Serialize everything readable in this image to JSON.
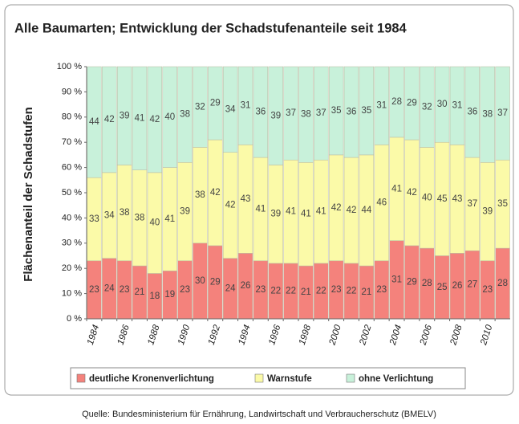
{
  "chart_data": {
    "type": "stacked_bar",
    "title": "Alle Baumarten; Entwicklung der Schadstufenanteile seit 1984",
    "y_label": "Flächenanteil der Schadstufen",
    "source": "Quelle: Bundesministerium für Ernährung, Landwirtschaft und Verbraucherschutz (BMELV)",
    "categories": [
      "1984",
      null,
      "1986",
      null,
      "1988",
      null,
      "1990",
      null,
      "1992",
      null,
      "1994",
      null,
      "1996",
      null,
      "1998",
      null,
      "2000",
      null,
      "2002",
      null,
      "2004",
      null,
      "2006",
      null,
      "2008",
      null,
      "2010",
      null
    ],
    "series": [
      {
        "name": "deutliche Kronenverlichtung",
        "color": "#f4827c",
        "values": [
          23,
          24,
          23,
          21,
          18,
          19,
          23,
          30,
          29,
          24,
          26,
          23,
          22,
          22,
          21,
          22,
          23,
          22,
          21,
          23,
          31,
          29,
          28,
          25,
          26,
          27,
          23,
          28
        ]
      },
      {
        "name": "Warnstufe",
        "color": "#fbfaa8",
        "values": [
          33,
          34,
          38,
          38,
          40,
          41,
          39,
          38,
          42,
          42,
          43,
          41,
          39,
          41,
          41,
          41,
          42,
          42,
          44,
          46,
          41,
          42,
          40,
          45,
          43,
          37,
          39,
          35
        ]
      },
      {
        "name": "ohne Verlichtung",
        "color": "#c8f1da",
        "values": [
          44,
          42,
          39,
          41,
          42,
          40,
          38,
          32,
          29,
          34,
          31,
          36,
          39,
          37,
          38,
          37,
          35,
          36,
          35,
          31,
          28,
          29,
          32,
          30,
          31,
          36,
          38,
          37
        ]
      }
    ],
    "ylim": [
      0,
      100
    ],
    "yticks": [
      {
        "value": 0,
        "label": "0 %"
      },
      {
        "value": 10,
        "label": "10 %"
      },
      {
        "value": 20,
        "label": "20 %"
      },
      {
        "value": 30,
        "label": "30 %"
      },
      {
        "value": 40,
        "label": "40 %"
      },
      {
        "value": 50,
        "label": "50 %"
      },
      {
        "value": 60,
        "label": "60 %"
      },
      {
        "value": 70,
        "label": "70 %"
      },
      {
        "value": 80,
        "label": "80 %"
      },
      {
        "value": 90,
        "label": "90 %"
      },
      {
        "value": 100,
        "label": "100 %"
      }
    ],
    "legend": "bottom"
  }
}
